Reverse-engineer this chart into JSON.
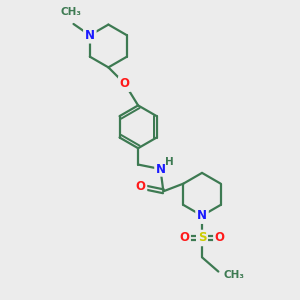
{
  "bg_color": "#ececec",
  "bond_color": "#3d7a52",
  "N_color": "#1a1aff",
  "O_color": "#ff1a1a",
  "S_color": "#cccc00",
  "line_width": 1.6,
  "font_size": 8.5,
  "fig_size": [
    3.0,
    3.0
  ],
  "dpi": 100,
  "xlim": [
    0,
    10
  ],
  "ylim": [
    0,
    10
  ]
}
